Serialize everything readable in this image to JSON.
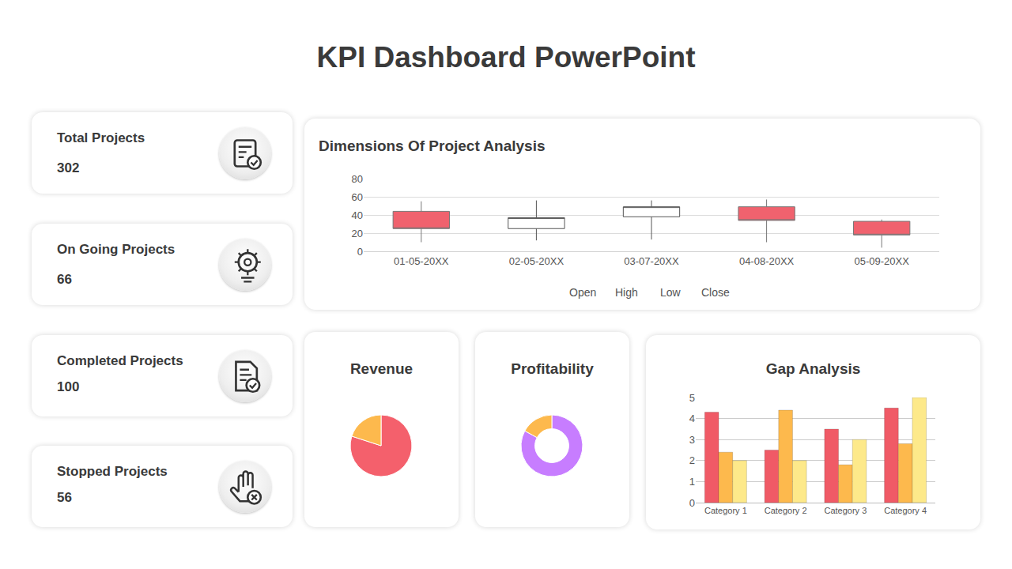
{
  "title": "KPI Dashboard PowerPoint",
  "cards": [
    {
      "label": "Total Projects",
      "value": 302
    },
    {
      "label": "On Going Projects",
      "value": 66
    },
    {
      "label": "Completed Projects",
      "value": 100
    },
    {
      "label": "Stopped Projects",
      "value": 56
    }
  ],
  "chart_data": [
    {
      "type": "candlestick",
      "title": "Dimensions Of Project Analysis",
      "categories": [
        "01-05-20XX",
        "02-05-20XX",
        "03-07-20XX",
        "04-08-20XX",
        "05-09-20XX"
      ],
      "series": [
        {
          "name": "Open",
          "values": [
            44,
            25,
            38,
            49,
            33
          ]
        },
        {
          "name": "High",
          "values": [
            55,
            56,
            56,
            57,
            35
          ]
        },
        {
          "name": "Low",
          "values": [
            10,
            12,
            13,
            10,
            4
          ]
        },
        {
          "name": "Close",
          "values": [
            25,
            37,
            49,
            34,
            18
          ]
        }
      ],
      "ylim": [
        0,
        80
      ],
      "yticks": [
        0,
        20,
        40,
        60,
        80
      ],
      "grid": true
    },
    {
      "type": "pie",
      "title": "Revenue",
      "values": [
        80,
        20
      ],
      "colors": [
        "#f4606c",
        "#fdb94d"
      ]
    },
    {
      "type": "donut",
      "title": "Profitability",
      "values": [
        83,
        17
      ],
      "colors": [
        "#c77dff",
        "#fdb94d"
      ]
    },
    {
      "type": "bar",
      "title": "Gap Analysis",
      "categories": [
        "Category 1",
        "Category 2",
        "Category 3",
        "Category 4"
      ],
      "series": [
        {
          "color": "#f05a66",
          "values": [
            4.3,
            2.5,
            3.5,
            4.5
          ]
        },
        {
          "color": "#fdb94d",
          "values": [
            2.4,
            4.4,
            1.8,
            2.8
          ]
        },
        {
          "color": "#fde98a",
          "values": [
            2.0,
            2.0,
            3.0,
            5.0
          ]
        }
      ],
      "ylim": [
        0,
        5
      ],
      "yticks": [
        0,
        1,
        2,
        3,
        4,
        5
      ],
      "grid": true
    }
  ]
}
